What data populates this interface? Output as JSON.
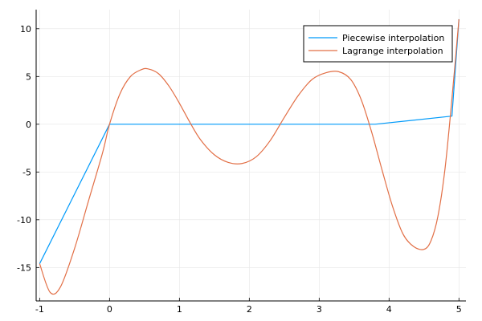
{
  "chart_data": {
    "type": "line",
    "title": "",
    "xlabel": "",
    "ylabel": "",
    "xlim": [
      -1.05,
      5.1
    ],
    "ylim": [
      -18.5,
      12.0
    ],
    "xticks": [
      -1,
      0,
      1,
      2,
      3,
      4,
      5
    ],
    "yticks": [
      -15,
      -10,
      -5,
      0,
      5,
      10
    ],
    "grid": true,
    "legend_position": "top-right",
    "series": [
      {
        "name": "Piecewise interpolation",
        "color": "#009AFA",
        "x": [
          -1,
          0,
          3.8,
          4.9,
          5.0
        ],
        "y": [
          -14.6,
          0,
          0,
          0.85,
          11.0
        ]
      },
      {
        "name": "Lagrange interpolation",
        "color": "#E26F46",
        "x": [
          -1.0,
          -0.85,
          -0.7,
          -0.5,
          -0.3,
          -0.1,
          0.0,
          0.15,
          0.3,
          0.45,
          0.55,
          0.7,
          0.85,
          1.0,
          1.15,
          1.3,
          1.5,
          1.7,
          1.9,
          2.1,
          2.3,
          2.5,
          2.7,
          2.9,
          3.1,
          3.28,
          3.45,
          3.6,
          3.75,
          3.9,
          4.05,
          4.2,
          4.35,
          4.5,
          4.6,
          4.7,
          4.8,
          4.9,
          5.0
        ],
        "y": [
          -14.6,
          -17.6,
          -17.0,
          -13.0,
          -8.0,
          -3.0,
          0.0,
          3.2,
          5.0,
          5.7,
          5.8,
          5.3,
          4.0,
          2.2,
          0.2,
          -1.6,
          -3.2,
          -4.0,
          -4.1,
          -3.4,
          -1.7,
          0.7,
          3.0,
          4.7,
          5.4,
          5.5,
          4.7,
          2.6,
          -0.8,
          -4.8,
          -8.6,
          -11.5,
          -12.8,
          -13.1,
          -12.2,
          -9.6,
          -4.7,
          2.7,
          11.0
        ]
      }
    ]
  }
}
